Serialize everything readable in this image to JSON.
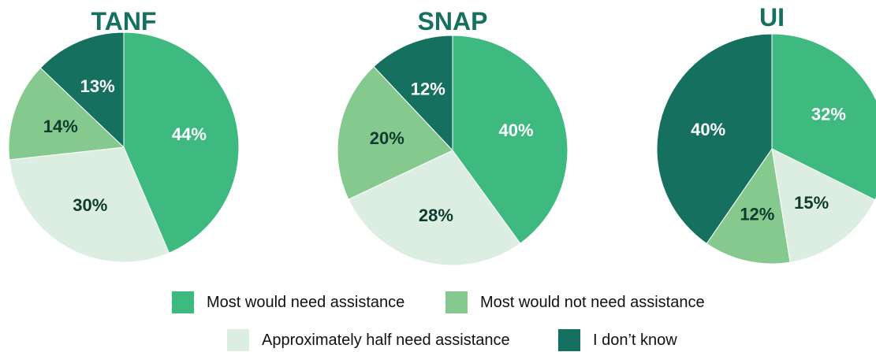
{
  "colors": {
    "title": "#16705f",
    "most_need": "#3eb97f",
    "most_not_need": "#85c98f",
    "half_need": "#dceee2",
    "dont_know": "#16705f",
    "label_dark": "#0f3b2e",
    "label_light": "#ffffff"
  },
  "legend": [
    {
      "label": "Most would need assistance",
      "color_key": "most_need"
    },
    {
      "label": "Most would not need assistance",
      "color_key": "most_not_need"
    },
    {
      "label": "Approximately half need assistance",
      "color_key": "half_need"
    },
    {
      "label": "I don’t know",
      "color_key": "dont_know"
    }
  ],
  "chart_data": [
    {
      "type": "pie",
      "title": "TANF",
      "slices": [
        {
          "label": "Most would need assistance",
          "value": 44,
          "text": "44%"
        },
        {
          "label": "Approximately half need assistance",
          "value": 30,
          "text": "30%"
        },
        {
          "label": "Most would not need assistance",
          "value": 14,
          "text": "14%"
        },
        {
          "label": "I don’t know",
          "value": 13,
          "text": "13%"
        }
      ]
    },
    {
      "type": "pie",
      "title": "SNAP",
      "slices": [
        {
          "label": "Most would need assistance",
          "value": 40,
          "text": "40%"
        },
        {
          "label": "Approximately half need assistance",
          "value": 28,
          "text": "28%"
        },
        {
          "label": "Most would not need assistance",
          "value": 20,
          "text": "20%"
        },
        {
          "label": "I don’t know",
          "value": 12,
          "text": "12%"
        }
      ]
    },
    {
      "type": "pie",
      "title": "UI",
      "slices": [
        {
          "label": "Most would need assistance",
          "value": 32,
          "text": "32%"
        },
        {
          "label": "Approximately half need assistance",
          "value": 15,
          "text": "15%"
        },
        {
          "label": "Most would not need assistance",
          "value": 12,
          "text": "12%"
        },
        {
          "label": "I don’t know",
          "value": 40,
          "text": "40%"
        }
      ]
    }
  ]
}
